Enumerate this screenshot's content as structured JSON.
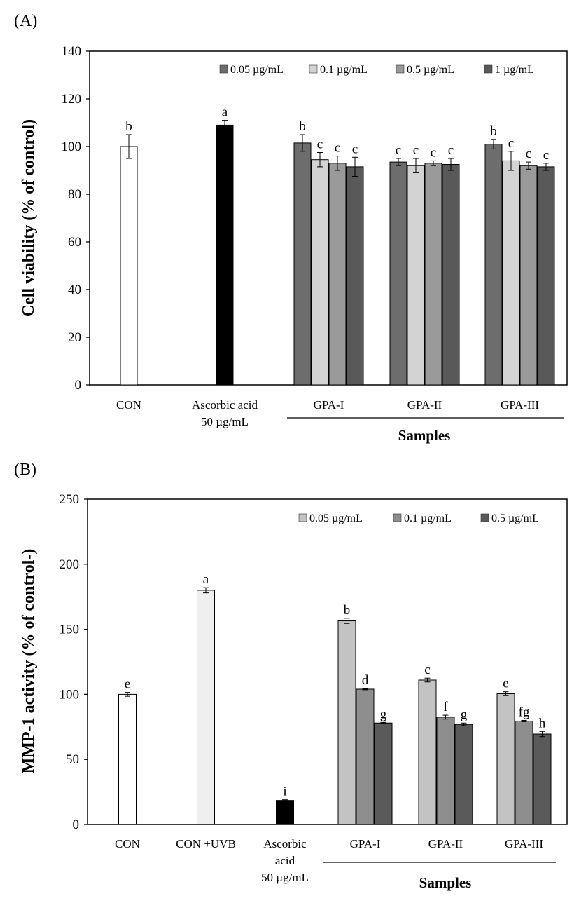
{
  "chart_data": [
    {
      "type": "bar",
      "panel_label": "(A)",
      "ylabel": "Cell viability (% of control)",
      "xlabel": "Samples",
      "ylim": [
        0,
        140
      ],
      "yticks": [
        0,
        20,
        40,
        60,
        80,
        100,
        120,
        140
      ],
      "grid": false,
      "legend_position": "top-right",
      "legend": [
        {
          "label": "0.05 µg/mL",
          "color": "#6d6d6d"
        },
        {
          "label": "0.1 µg/mL",
          "color": "#d3d3d3"
        },
        {
          "label": "0.5 µg/mL",
          "color": "#9a9a9a"
        },
        {
          "label": "1 µg/mL",
          "color": "#595959"
        }
      ],
      "categories": [
        {
          "label": [
            "CON"
          ],
          "bars": [
            {
              "value": 100,
              "error": 5,
              "sig": "b",
              "color": "#ffffff"
            }
          ]
        },
        {
          "label": [
            "Ascorbic acid",
            "50 µg/mL"
          ],
          "bars": [
            {
              "value": 109,
              "error": 2,
              "sig": "a",
              "color": "#000000"
            }
          ]
        },
        {
          "label": [
            "GPA-I"
          ],
          "bars": [
            {
              "value": 101.5,
              "error": 3.5,
              "sig": "b",
              "color": "#6d6d6d"
            },
            {
              "value": 94.5,
              "error": 3,
              "sig": "c",
              "color": "#d3d3d3"
            },
            {
              "value": 93,
              "error": 3,
              "sig": "c",
              "color": "#9a9a9a"
            },
            {
              "value": 91.5,
              "error": 4,
              "sig": "c",
              "color": "#595959"
            }
          ]
        },
        {
          "label": [
            "GPA-II"
          ],
          "bars": [
            {
              "value": 93.5,
              "error": 1.5,
              "sig": "c",
              "color": "#6d6d6d"
            },
            {
              "value": 92,
              "error": 3,
              "sig": "c",
              "color": "#d3d3d3"
            },
            {
              "value": 93,
              "error": 1,
              "sig": "c",
              "color": "#9a9a9a"
            },
            {
              "value": 92.5,
              "error": 2.5,
              "sig": "c",
              "color": "#595959"
            }
          ]
        },
        {
          "label": [
            "GPA-III"
          ],
          "bars": [
            {
              "value": 101,
              "error": 2,
              "sig": "b",
              "color": "#6d6d6d"
            },
            {
              "value": 94,
              "error": 4,
              "sig": "c",
              "color": "#d3d3d3"
            },
            {
              "value": 92,
              "error": 1.5,
              "sig": "c",
              "color": "#9a9a9a"
            },
            {
              "value": 91.5,
              "error": 1.5,
              "sig": "c",
              "color": "#595959"
            }
          ]
        }
      ]
    },
    {
      "type": "bar",
      "panel_label": "(B)",
      "ylabel": "MMP-1 activity (% of control-)",
      "xlabel": "Samples",
      "ylim": [
        0,
        250
      ],
      "yticks": [
        0,
        50,
        100,
        150,
        200,
        250
      ],
      "grid": false,
      "legend_position": "top-right",
      "legend": [
        {
          "label": "0.05 µg/mL",
          "color": "#c3c3c3"
        },
        {
          "label": "0.1 µg/mL",
          "color": "#8e8e8e"
        },
        {
          "label": "0.5 µg/mL",
          "color": "#5a5a5a"
        }
      ],
      "categories": [
        {
          "label": [
            "CON"
          ],
          "bars": [
            {
              "value": 100,
              "error": 1.5,
              "sig": "e",
              "color": "#ffffff"
            }
          ]
        },
        {
          "label": [
            "CON +UVB"
          ],
          "bars": [
            {
              "value": 180,
              "error": 2,
              "sig": "a",
              "color": "#efefef"
            }
          ]
        },
        {
          "label": [
            "Ascorbic",
            "acid",
            "50 µg/mL"
          ],
          "bars": [
            {
              "value": 18.5,
              "error": 0.5,
              "sig": "i",
              "color": "#000000"
            }
          ]
        },
        {
          "label": [
            "GPA-I"
          ],
          "bars": [
            {
              "value": 156.5,
              "error": 2,
              "sig": "b",
              "color": "#c3c3c3"
            },
            {
              "value": 104,
              "error": 0.5,
              "sig": "d",
              "color": "#8e8e8e"
            },
            {
              "value": 78,
              "error": 0.5,
              "sig": "g",
              "color": "#5a5a5a"
            }
          ]
        },
        {
          "label": [
            "GPA-II"
          ],
          "bars": [
            {
              "value": 111,
              "error": 1.5,
              "sig": "c",
              "color": "#c3c3c3"
            },
            {
              "value": 82.5,
              "error": 1.5,
              "sig": "f",
              "color": "#8e8e8e"
            },
            {
              "value": 77,
              "error": 1,
              "sig": "g",
              "color": "#5a5a5a"
            }
          ]
        },
        {
          "label": [
            "GPA-III"
          ],
          "bars": [
            {
              "value": 100.5,
              "error": 1.5,
              "sig": "e",
              "color": "#c3c3c3"
            },
            {
              "value": 79.5,
              "error": 0.5,
              "sig": "fg",
              "color": "#8e8e8e"
            },
            {
              "value": 69.5,
              "error": 2,
              "sig": "h",
              "color": "#5a5a5a"
            }
          ]
        }
      ]
    }
  ]
}
